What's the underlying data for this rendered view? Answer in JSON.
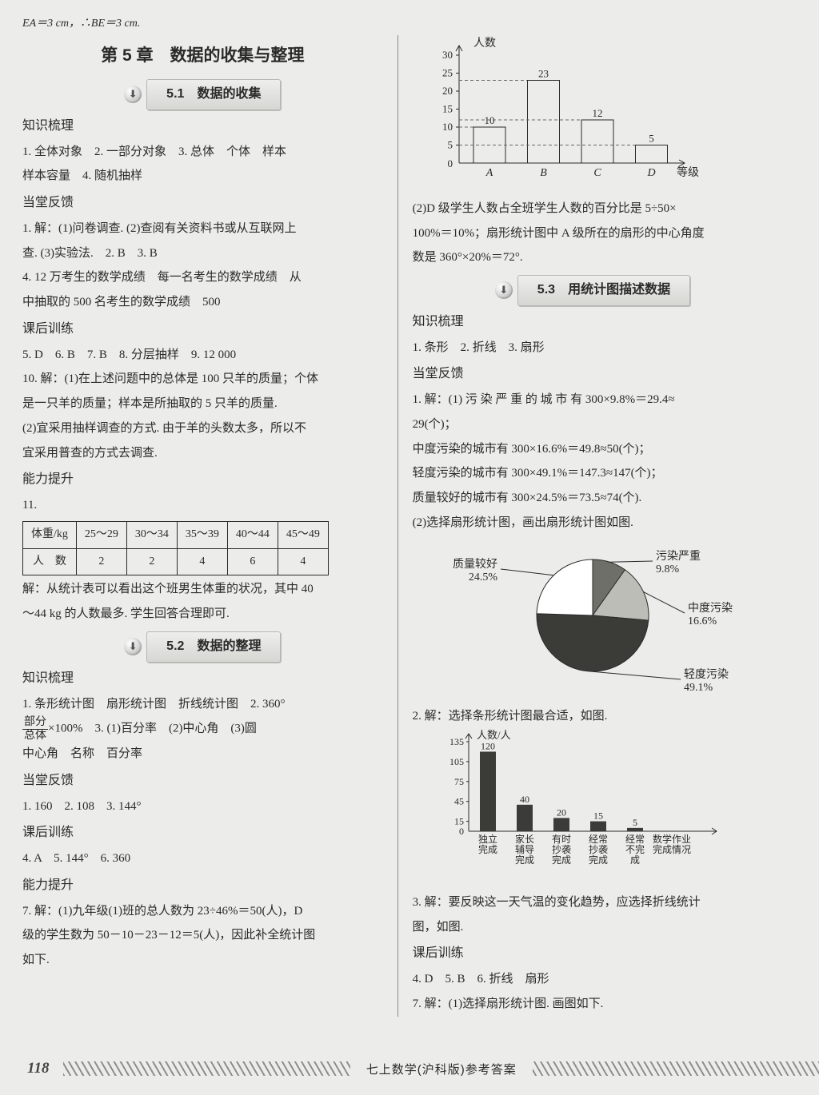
{
  "topline": "EA＝3 cm，∴BE＝3 cm.",
  "chapter": "第 5 章　数据的收集与整理",
  "sec51": {
    "num": "5.1",
    "title": "数据的收集"
  },
  "sec52": {
    "num": "5.2",
    "title": "数据的整理"
  },
  "sec53": {
    "num": "5.3",
    "title": "用统计图描述数据"
  },
  "hd": {
    "zs": "知识梳理",
    "dt": "当堂反馈",
    "kh": "课后训练",
    "nl": "能力提升"
  },
  "L": {
    "zs1": "1. 全体对象　2. 一部分对象　3. 总体　个体　样本",
    "zs1b": "样本容量　4. 随机抽样",
    "dt1": "1. 解：(1)问卷调查. (2)查阅有关资料书或从互联网上",
    "dt1b": "查. (3)实验法.　2. B　3. B",
    "dt2": "4. 12 万考生的数学成绩　每一名考生的数学成绩　从",
    "dt2b": "中抽取的 500 名考生的数学成绩　500",
    "kh1": "5. D　6. B　7. B　8. 分层抽样　9. 12 000",
    "kh2": "10. 解：(1)在上述问题中的总体是 100 只羊的质量；个体",
    "kh2b": "是一只羊的质量；样本是所抽取的 5 只羊的质量.",
    "kh3": "(2)宜采用抽样调查的方式. 由于羊的头数太多，所以不",
    "kh3b": "宜采用普查的方式去调查.",
    "nl1": "11.",
    "tblcap": "解：从统计表可以看出这个班男生体重的状况，其中 40",
    "tblcap2": "～44 kg 的人数最多. 学生回答合理即可.",
    "zs2a": "1. 条形统计图　扇形统计图　折线统计图　2. 360°",
    "zs2b_pre": "",
    "zs2b_post": "×100%　3. (1)百分率　(2)中心角　(3)圆",
    "zs2c": "中心角　名称　百分率",
    "dt2a": "1. 160　2. 108　3. 144°",
    "kh2a": "4. A　5. 144°　6. 360",
    "nl2": "7. 解：(1)九年级(1)班的总人数为 23÷46%＝50(人)，D",
    "nl2b": "级的学生数为 50－10－23－12＝5(人)，因此补全统计图",
    "nl2c": "如下."
  },
  "table": {
    "h": [
      "体重/kg",
      "25～29",
      "30～34",
      "35～39",
      "40～44",
      "45～49"
    ],
    "r": [
      "人　数",
      "2",
      "2",
      "4",
      "6",
      "4"
    ]
  },
  "R": {
    "p1": "(2)D 级学生人数占全班学生人数的百分比是 5÷50×",
    "p1b": "100%＝10%；扇形统计图中 A 级所在的扇形的中心角度",
    "p1c": "数是 360°×20%＝72°.",
    "zs": "1. 条形　2. 折线　3. 扇形",
    "dt1": "1. 解：(1) 污 染 严 重 的 城 市 有 300×9.8%＝29.4≈",
    "dt1b": "29(个)；",
    "dt2": "中度污染的城市有 300×16.6%＝49.8≈50(个)；",
    "dt3": "轻度污染的城市有 300×49.1%＝147.3≈147(个)；",
    "dt4": "质量较好的城市有 300×24.5%＝73.5≈74(个).",
    "dt5": "(2)选择扇形统计图，画出扇形统计图如图.",
    "sol2": "2. 解：选择条形统计图最合适，如图.",
    "sol3": "3. 解：要反映这一天气温的变化趋势，应选择折线统计",
    "sol3b": "图，如图.",
    "kh1": "4. D　5. B　6. 折线　扇形",
    "kh2": "7. 解：(1)选择扇形统计图. 画图如下."
  },
  "barTop": {
    "ylabel": "人数",
    "xlabel": "等级",
    "yticks": [
      5,
      10,
      15,
      20,
      25,
      30
    ],
    "cats": [
      "A",
      "B",
      "C",
      "D"
    ],
    "vals": [
      10,
      23,
      12,
      5
    ],
    "axis": "#2a2a2a",
    "dash": "#6a6a66",
    "fill": "none",
    "stroke": "#2a2a2a"
  },
  "pie": {
    "slices": [
      {
        "label": "污染严重",
        "sub": "9.8%",
        "pct": 9.8,
        "fill": "#6f6f6a"
      },
      {
        "label": "中度污染",
        "sub": "16.6%",
        "pct": 16.6,
        "fill": "#bdbdb7"
      },
      {
        "label": "轻度污染",
        "sub": "49.1%",
        "pct": 49.1,
        "fill": "#3b3b38"
      },
      {
        "label": "质量较好",
        "sub": "24.5%",
        "pct": 24.5,
        "fill": "#ffffff"
      }
    ],
    "stroke": "#2a2a2a"
  },
  "barBtm": {
    "ylabel": "人数/人",
    "yticks": [
      15,
      45,
      75,
      105,
      135
    ],
    "cats": [
      "独立\n完成",
      "家长\n辅导\n完成",
      "有时\n抄袭\n完成",
      "经常\n抄袭\n完成",
      "经常\n不完\n成",
      "数学作业\n完成情况"
    ],
    "vals": [
      120,
      40,
      20,
      15,
      5
    ],
    "labels": [
      "120",
      "40",
      "20",
      "15",
      "5"
    ],
    "fill": "#3b3b38",
    "axis": "#2a2a2a"
  },
  "footer": {
    "page": "118",
    "label": "七上数学(沪科版)参考答案"
  }
}
